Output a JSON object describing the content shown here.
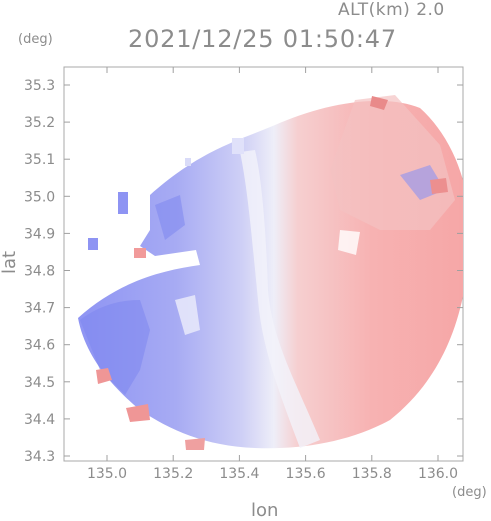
{
  "header": {
    "altitude_label": "ALT(km) 2.0",
    "timestamp": "2021/12/25 01:50:47"
  },
  "axes": {
    "unit_top_left": "(deg)",
    "unit_bottom_right": "(deg)",
    "y_label": "lat",
    "x_label": "lon",
    "y_ticks": [
      "35.3",
      "35.2",
      "35.1",
      "35.0",
      "34.9",
      "34.8",
      "34.7",
      "34.6",
      "34.5",
      "34.4",
      "34.3"
    ],
    "x_ticks": [
      "135.0",
      "135.2",
      "135.4",
      "135.6",
      "135.8",
      "136.0"
    ]
  },
  "colors": {
    "approaching": "#8f95f2",
    "receding": "#f6a3a3",
    "axis": "#a0a0a0",
    "text": "#8c8c8c"
  }
}
